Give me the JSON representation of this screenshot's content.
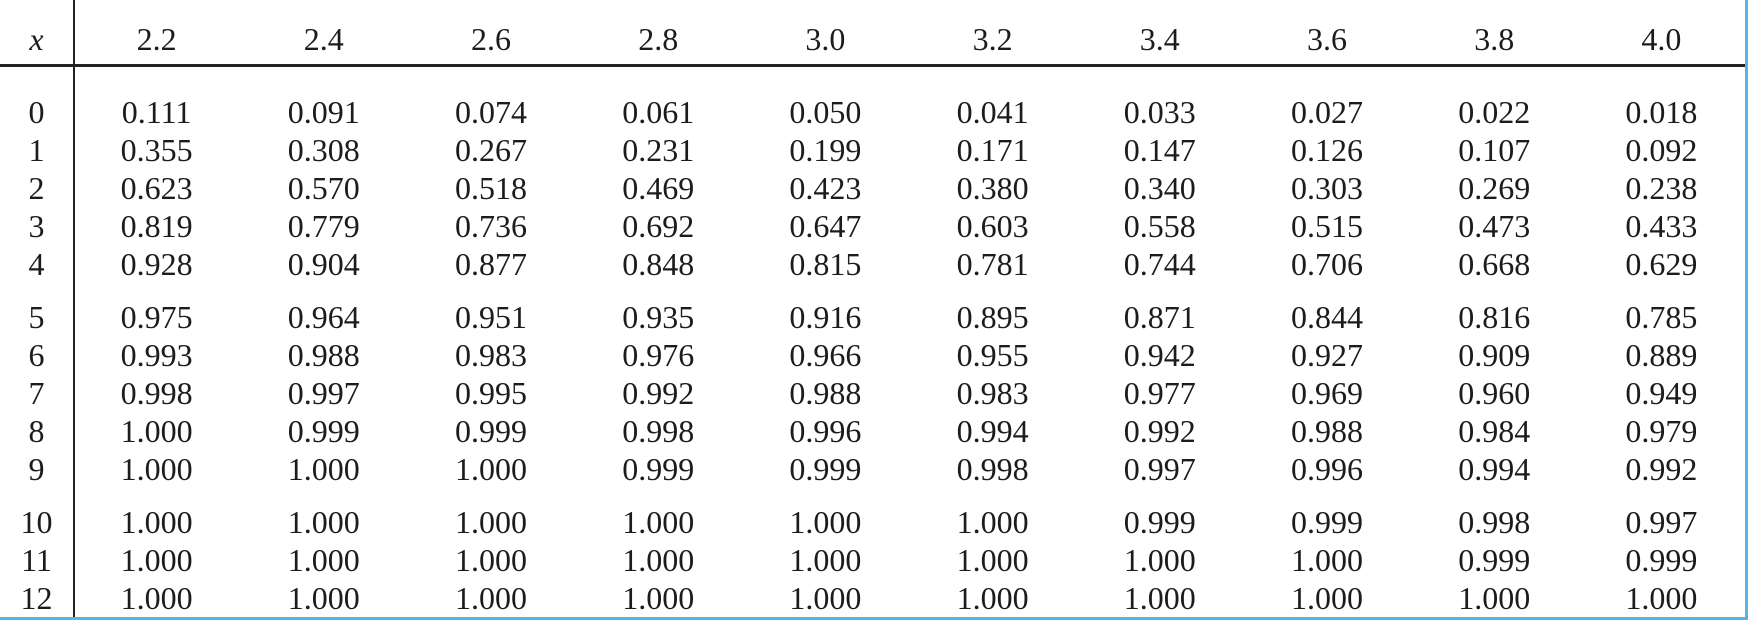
{
  "colors": {
    "frame_blue": "#58b4e5",
    "rule_black": "#232323",
    "text": "#1c1c1c",
    "background": "#ffffff"
  },
  "table": {
    "corner_label": "x",
    "column_headers": [
      "2.2",
      "2.4",
      "2.6",
      "2.8",
      "3.0",
      "3.2",
      "3.4",
      "3.6",
      "3.8",
      "4.0"
    ],
    "groups": [
      [
        {
          "x": "0",
          "values": [
            "0.111",
            "0.091",
            "0.074",
            "0.061",
            "0.050",
            "0.041",
            "0.033",
            "0.027",
            "0.022",
            "0.018"
          ]
        },
        {
          "x": "1",
          "values": [
            "0.355",
            "0.308",
            "0.267",
            "0.231",
            "0.199",
            "0.171",
            "0.147",
            "0.126",
            "0.107",
            "0.092"
          ]
        },
        {
          "x": "2",
          "values": [
            "0.623",
            "0.570",
            "0.518",
            "0.469",
            "0.423",
            "0.380",
            "0.340",
            "0.303",
            "0.269",
            "0.238"
          ]
        },
        {
          "x": "3",
          "values": [
            "0.819",
            "0.779",
            "0.736",
            "0.692",
            "0.647",
            "0.603",
            "0.558",
            "0.515",
            "0.473",
            "0.433"
          ]
        },
        {
          "x": "4",
          "values": [
            "0.928",
            "0.904",
            "0.877",
            "0.848",
            "0.815",
            "0.781",
            "0.744",
            "0.706",
            "0.668",
            "0.629"
          ]
        }
      ],
      [
        {
          "x": "5",
          "values": [
            "0.975",
            "0.964",
            "0.951",
            "0.935",
            "0.916",
            "0.895",
            "0.871",
            "0.844",
            "0.816",
            "0.785"
          ]
        },
        {
          "x": "6",
          "values": [
            "0.993",
            "0.988",
            "0.983",
            "0.976",
            "0.966",
            "0.955",
            "0.942",
            "0.927",
            "0.909",
            "0.889"
          ]
        },
        {
          "x": "7",
          "values": [
            "0.998",
            "0.997",
            "0.995",
            "0.992",
            "0.988",
            "0.983",
            "0.977",
            "0.969",
            "0.960",
            "0.949"
          ]
        },
        {
          "x": "8",
          "values": [
            "1.000",
            "0.999",
            "0.999",
            "0.998",
            "0.996",
            "0.994",
            "0.992",
            "0.988",
            "0.984",
            "0.979"
          ]
        },
        {
          "x": "9",
          "values": [
            "1.000",
            "1.000",
            "1.000",
            "0.999",
            "0.999",
            "0.998",
            "0.997",
            "0.996",
            "0.994",
            "0.992"
          ]
        }
      ],
      [
        {
          "x": "10",
          "values": [
            "1.000",
            "1.000",
            "1.000",
            "1.000",
            "1.000",
            "1.000",
            "0.999",
            "0.999",
            "0.998",
            "0.997"
          ]
        },
        {
          "x": "11",
          "values": [
            "1.000",
            "1.000",
            "1.000",
            "1.000",
            "1.000",
            "1.000",
            "1.000",
            "1.000",
            "0.999",
            "0.999"
          ]
        },
        {
          "x": "12",
          "values": [
            "1.000",
            "1.000",
            "1.000",
            "1.000",
            "1.000",
            "1.000",
            "1.000",
            "1.000",
            "1.000",
            "1.000"
          ]
        }
      ]
    ]
  }
}
